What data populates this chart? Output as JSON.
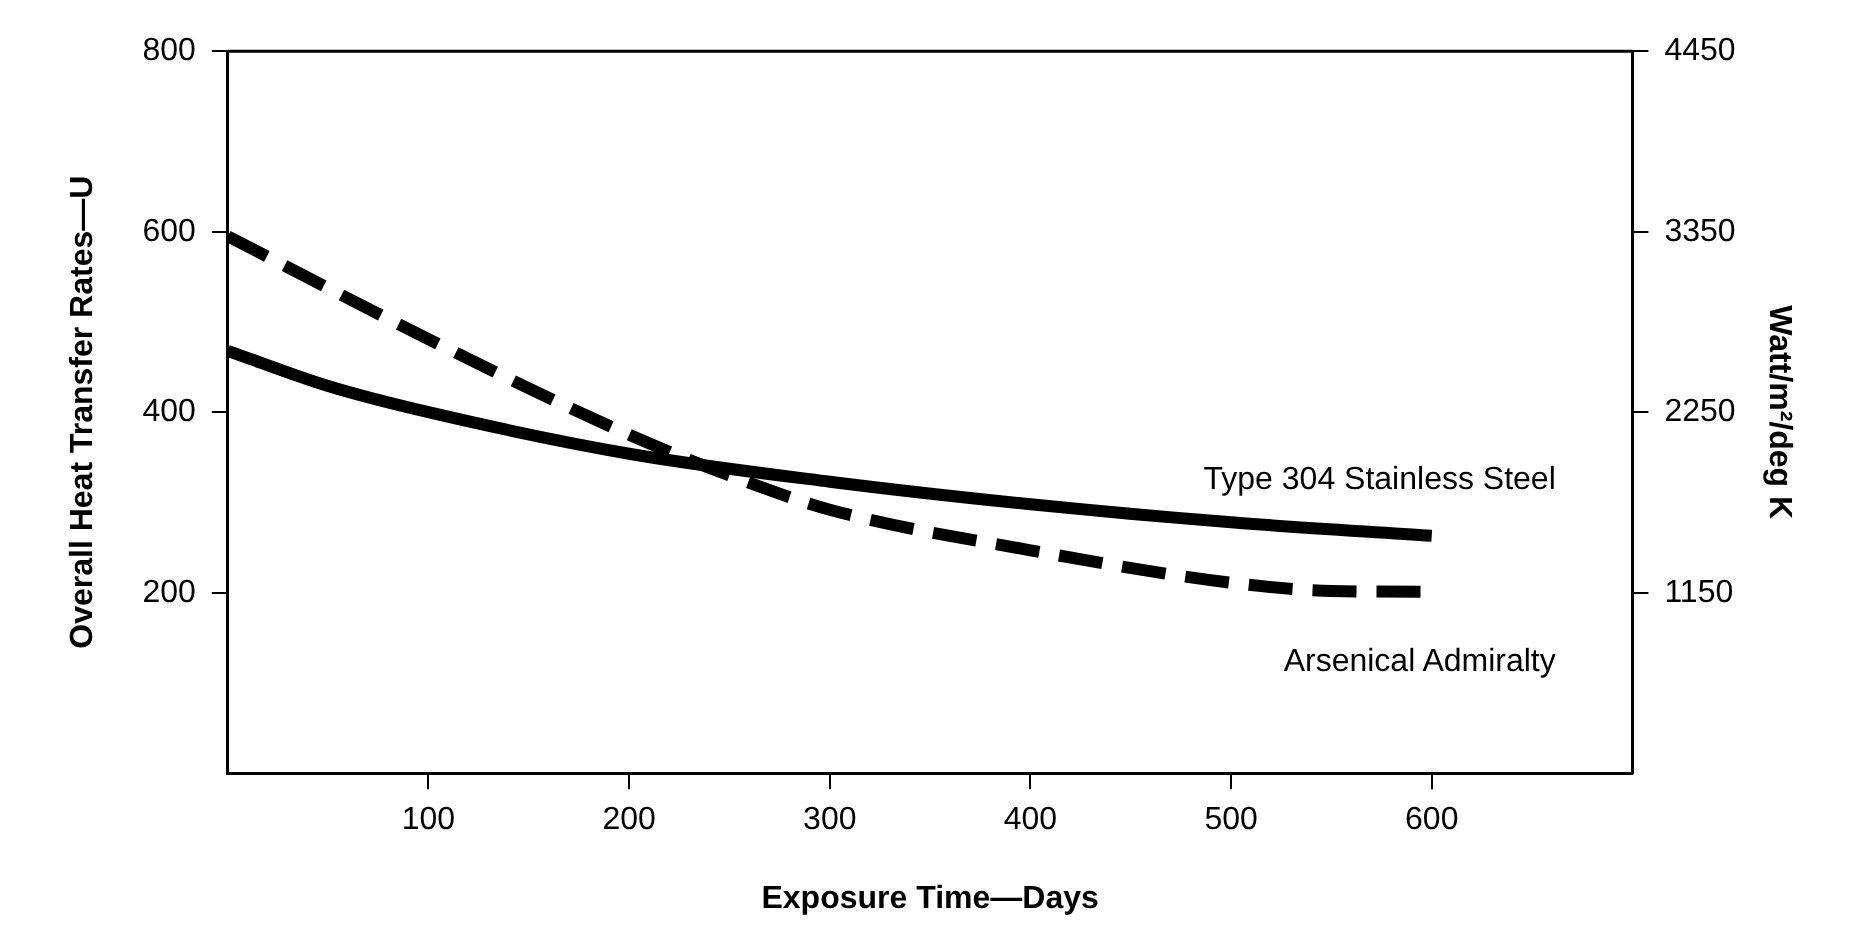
{
  "chart_data": {
    "type": "line",
    "xlabel": "Exposure Time—Days",
    "ylabel": "Overall Heat Transfer Rates—U",
    "y2label": "Watt/m²/deg K",
    "series": [
      {
        "name": "Type 304 Stainless Steel",
        "color": "#000000",
        "line_style": "solid",
        "x": [
          0,
          50,
          100,
          200,
          300,
          400,
          500,
          600
        ],
        "values": [
          468,
          429,
          400,
          354,
          323,
          298,
          278,
          263
        ]
      },
      {
        "name": "Arsenical Admiralty",
        "color": "#000000",
        "line_style": "dashed",
        "x": [
          0,
          100,
          200,
          250,
          300,
          400,
          500,
          550,
          600
        ],
        "values": [
          595,
          481,
          375,
          330,
          292,
          247,
          211,
          202,
          201
        ]
      }
    ],
    "xlim": [
      0,
      700
    ],
    "xticks": [
      100,
      200,
      300,
      400,
      500,
      600
    ],
    "ylim": [
      0,
      800
    ],
    "yticks": [
      200,
      400,
      600,
      800
    ],
    "y2lim": [
      50,
      4450
    ],
    "y2ticks": [
      1150,
      2250,
      3350,
      4450
    ],
    "grid": false,
    "legend": false
  }
}
